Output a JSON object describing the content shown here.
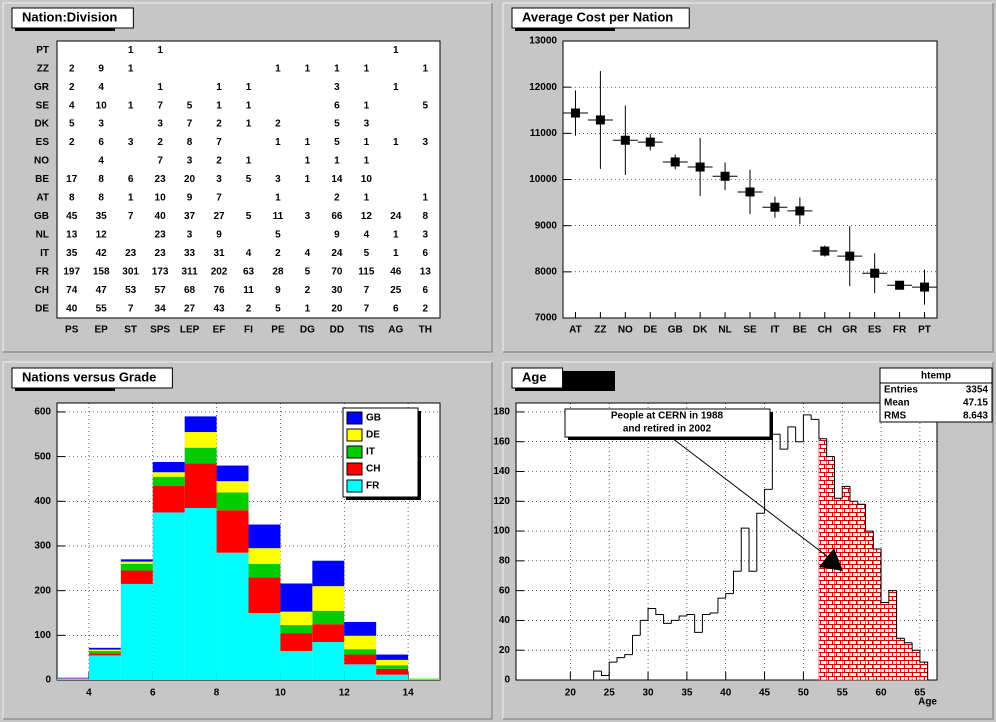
{
  "chart_data": [
    {
      "type": "heatmap",
      "title": "Nation:Division",
      "x_categories": [
        "PS",
        "EP",
        "ST",
        "SPS",
        "LEP",
        "EF",
        "FI",
        "PE",
        "DG",
        "DD",
        "TIS",
        "AG",
        "TH"
      ],
      "y_categories": [
        "PT",
        "ZZ",
        "GR",
        "SE",
        "DK",
        "ES",
        "NO",
        "BE",
        "AT",
        "GB",
        "NL",
        "IT",
        "FR",
        "CH",
        "DE"
      ],
      "values": [
        [
          null,
          null,
          1,
          1,
          null,
          null,
          null,
          null,
          null,
          null,
          null,
          1,
          null
        ],
        [
          2,
          9,
          1,
          null,
          null,
          null,
          null,
          1,
          1,
          1,
          1,
          null,
          1
        ],
        [
          2,
          4,
          null,
          1,
          null,
          1,
          1,
          null,
          null,
          3,
          null,
          1,
          null
        ],
        [
          4,
          10,
          1,
          7,
          5,
          1,
          1,
          null,
          null,
          6,
          1,
          null,
          5
        ],
        [
          5,
          3,
          null,
          3,
          7,
          2,
          1,
          2,
          null,
          5,
          3,
          null,
          null
        ],
        [
          2,
          6,
          3,
          2,
          8,
          7,
          null,
          1,
          1,
          5,
          1,
          1,
          3
        ],
        [
          null,
          4,
          null,
          7,
          3,
          2,
          1,
          null,
          1,
          1,
          1,
          null,
          null
        ],
        [
          17,
          8,
          6,
          23,
          20,
          3,
          5,
          3,
          1,
          14,
          10,
          null,
          null
        ],
        [
          8,
          8,
          1,
          10,
          9,
          7,
          null,
          1,
          null,
          2,
          1,
          null,
          1
        ],
        [
          45,
          35,
          7,
          40,
          37,
          27,
          5,
          11,
          3,
          66,
          12,
          24,
          8
        ],
        [
          13,
          12,
          null,
          23,
          3,
          9,
          null,
          5,
          null,
          9,
          4,
          1,
          3
        ],
        [
          35,
          42,
          23,
          23,
          33,
          31,
          4,
          2,
          4,
          24,
          5,
          1,
          6
        ],
        [
          197,
          158,
          301,
          173,
          311,
          202,
          63,
          28,
          5,
          70,
          115,
          46,
          13
        ],
        [
          74,
          47,
          53,
          57,
          68,
          76,
          11,
          9,
          2,
          30,
          7,
          25,
          6
        ],
        [
          40,
          55,
          7,
          34,
          27,
          43,
          2,
          5,
          1,
          20,
          7,
          6,
          2
        ]
      ]
    },
    {
      "type": "errorbar",
      "title": "Average Cost per Nation",
      "categories": [
        "AT",
        "ZZ",
        "NO",
        "DE",
        "GB",
        "DK",
        "NL",
        "SE",
        "IT",
        "BE",
        "CH",
        "GR",
        "ES",
        "FR",
        "PT"
      ],
      "values": [
        11440,
        11290,
        10850,
        10810,
        10380,
        10270,
        10070,
        9730,
        9400,
        9320,
        8450,
        8340,
        7970,
        7710,
        7670
      ],
      "errors": [
        490,
        1060,
        750,
        180,
        160,
        630,
        300,
        480,
        230,
        290,
        120,
        650,
        430,
        90,
        380
      ],
      "color": "#000000",
      "ylim": [
        7000,
        13000
      ],
      "yticks": [
        7000,
        8000,
        9000,
        10000,
        11000,
        12000,
        13000
      ],
      "grid": true
    },
    {
      "type": "histogram",
      "title": "Nations versus Grade",
      "stacked": true,
      "bins": [
        3,
        4,
        5,
        6,
        7,
        8,
        9,
        10,
        11,
        12,
        13,
        14,
        15
      ],
      "series": [
        {
          "name": "FR",
          "color": "#00ffff",
          "values": [
            3,
            55,
            215,
            375,
            385,
            285,
            150,
            65,
            85,
            35,
            12,
            2
          ]
        },
        {
          "name": "CH",
          "color": "#ff0000",
          "values": [
            1,
            5,
            30,
            60,
            100,
            95,
            80,
            40,
            40,
            22,
            13,
            0
          ]
        },
        {
          "name": "IT",
          "color": "#00cc00",
          "values": [
            0,
            5,
            15,
            20,
            35,
            40,
            30,
            18,
            30,
            12,
            8,
            1
          ]
        },
        {
          "name": "DE",
          "color": "#ffff00",
          "values": [
            0,
            3,
            5,
            10,
            35,
            25,
            35,
            30,
            55,
            30,
            12,
            0
          ]
        },
        {
          "name": "GB",
          "color": "#0000ff",
          "values": [
            1,
            4,
            5,
            23,
            35,
            35,
            53,
            63,
            57,
            31,
            12,
            0
          ]
        }
      ],
      "xlim": [
        3,
        15
      ],
      "xticks": [
        4,
        6,
        8,
        10,
        12,
        14
      ],
      "ylim": [
        0,
        620
      ],
      "yticks": [
        0,
        100,
        200,
        300,
        400,
        500,
        600
      ],
      "legend": "top-right",
      "grid": true
    },
    {
      "type": "histogram",
      "title": "Age",
      "x_label": "Age",
      "bins": [
        23,
        24,
        25,
        26,
        27,
        28,
        29,
        30,
        31,
        32,
        33,
        34,
        35,
        36,
        37,
        38,
        39,
        40,
        41,
        42,
        43,
        44,
        45,
        46,
        47,
        48,
        49,
        50,
        51,
        52,
        53,
        54,
        55,
        56,
        57,
        58,
        59,
        60,
        61,
        62,
        63,
        64,
        65,
        66
      ],
      "series": [
        {
          "color": "#cc0000",
          "style": "hatched",
          "values": [
            null,
            null,
            null,
            null,
            null,
            null,
            null,
            null,
            null,
            null,
            null,
            null,
            null,
            null,
            null,
            null,
            null,
            null,
            null,
            null,
            null,
            null,
            null,
            null,
            null,
            null,
            null,
            null,
            null,
            162,
            150,
            122,
            130,
            120,
            118,
            100,
            88,
            52,
            60,
            28,
            25,
            20,
            12
          ]
        },
        {
          "color": "#000000",
          "style": "outline",
          "values": [
            6,
            3,
            12,
            15,
            17,
            30,
            40,
            48,
            44,
            38,
            40,
            43,
            44,
            32,
            44,
            45,
            55,
            58,
            73,
            102,
            73,
            112,
            128,
            165,
            155,
            170,
            160,
            178,
            175,
            162,
            150,
            122,
            130,
            120,
            118,
            100,
            88,
            52,
            60,
            28,
            25,
            20,
            12
          ]
        }
      ],
      "xlim": [
        13,
        67.2
      ],
      "xticks": [
        20,
        25,
        30,
        35,
        40,
        45,
        50,
        55,
        60,
        65
      ],
      "ylim": [
        0,
        186
      ],
      "yticks": [
        0,
        20,
        40,
        60,
        80,
        100,
        120,
        140,
        160,
        180
      ],
      "grid": true,
      "stats": {
        "title": "htemp",
        "rows": [
          {
            "label": "Entries",
            "value": 3354
          },
          {
            "label": "Mean",
            "value": 47.15
          },
          {
            "label": "RMS",
            "value": 8.643
          }
        ]
      },
      "annotation": [
        "People at CERN in 1988",
        "and retired in 2002"
      ]
    }
  ]
}
